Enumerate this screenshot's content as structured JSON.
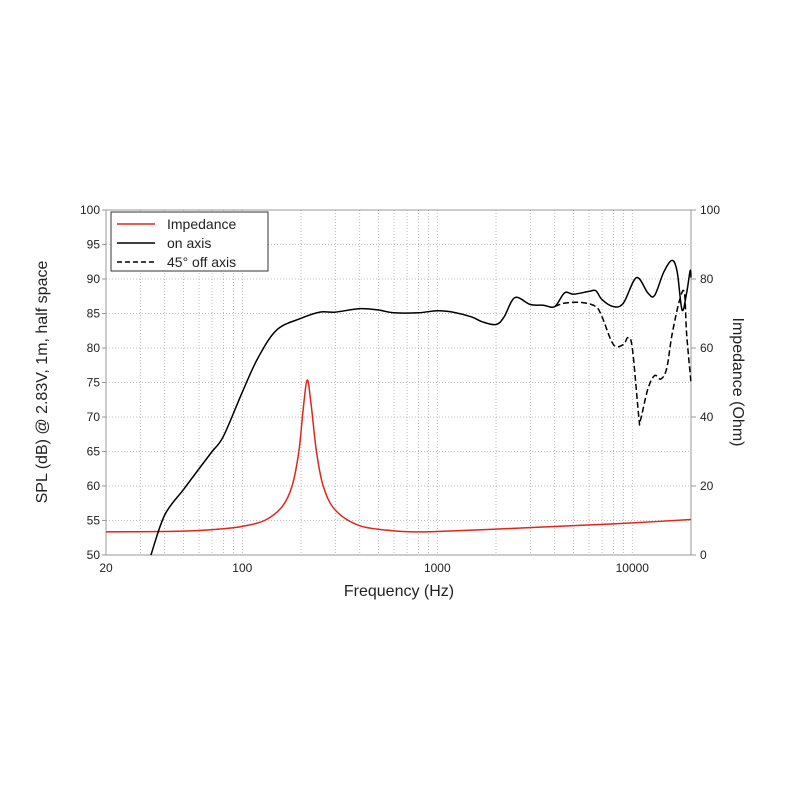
{
  "chart_data": {
    "type": "line",
    "xlabel": "Frequency (Hz)",
    "ylabel": "SPL (dB) @ 2.83V, 1m, half space",
    "y2label": "Impedance (Ohm)",
    "xscale": "log",
    "xlim": [
      20,
      20000
    ],
    "ylim": [
      50,
      100
    ],
    "y2lim": [
      0,
      100
    ],
    "xticks": [
      "20",
      "100",
      "1000",
      "10000"
    ],
    "yticks": [
      "50",
      "55",
      "60",
      "65",
      "70",
      "75",
      "80",
      "85",
      "90",
      "95",
      "100"
    ],
    "y2ticks": [
      "0",
      "20",
      "40",
      "60",
      "80",
      "100"
    ],
    "grid": true,
    "legend_position": "top-left",
    "series": [
      {
        "name": "Impedance",
        "axis": "right",
        "color": "#e0261b",
        "style": "solid",
        "x": [
          20,
          40,
          60,
          80,
          100,
          130,
          160,
          180,
          195,
          205,
          215,
          225,
          240,
          260,
          300,
          400,
          600,
          800,
          1000,
          2000,
          5000,
          10000,
          20000
        ],
        "y": [
          6.7,
          6.8,
          7.1,
          7.6,
          8.3,
          10,
          14,
          20,
          30,
          42,
          50.7,
          44,
          30,
          20,
          13,
          8.5,
          7,
          6.7,
          6.8,
          7.5,
          8.5,
          9.3,
          10.3
        ]
      },
      {
        "name": "on axis",
        "axis": "left",
        "color": "#000000",
        "style": "solid",
        "x": [
          34,
          40,
          50,
          60,
          70,
          80,
          100,
          120,
          150,
          200,
          250,
          300,
          400,
          500,
          600,
          800,
          1000,
          1200,
          1500,
          1700,
          2000,
          2200,
          2500,
          3000,
          3500,
          4000,
          4500,
          5000,
          6000,
          6500,
          7000,
          8000,
          9000,
          10500,
          12000,
          13000,
          14500,
          16000,
          17000,
          18000,
          19000,
          19800,
          20000
        ],
        "y": [
          50,
          55.8,
          59.5,
          62.5,
          65,
          67.2,
          73.6,
          78.5,
          82.6,
          84.3,
          85.2,
          85.2,
          85.7,
          85.5,
          85.1,
          85.1,
          85.4,
          85.2,
          84.5,
          83.8,
          83.4,
          84.5,
          87.3,
          86.3,
          86.2,
          86,
          88,
          87.8,
          88.2,
          88.3,
          87,
          86,
          86.5,
          90.2,
          88,
          87.6,
          91,
          92.7,
          91,
          85.5,
          88,
          91.2,
          90.2
        ]
      },
      {
        "name": "45° off axis",
        "axis": "left",
        "color": "#000000",
        "style": "dashed",
        "x": [
          4000,
          4500,
          5500,
          6500,
          7000,
          8000,
          9000,
          9500,
          10000,
          10800,
          11000,
          12000,
          13000,
          14000,
          15000,
          16000,
          17500,
          18500,
          19000,
          20000
        ],
        "y": [
          86,
          86.5,
          86.6,
          86,
          84.5,
          80.5,
          80.5,
          81.5,
          80,
          70,
          69.5,
          74,
          76,
          75.5,
          77,
          82,
          87,
          88,
          82,
          75
        ]
      }
    ]
  }
}
